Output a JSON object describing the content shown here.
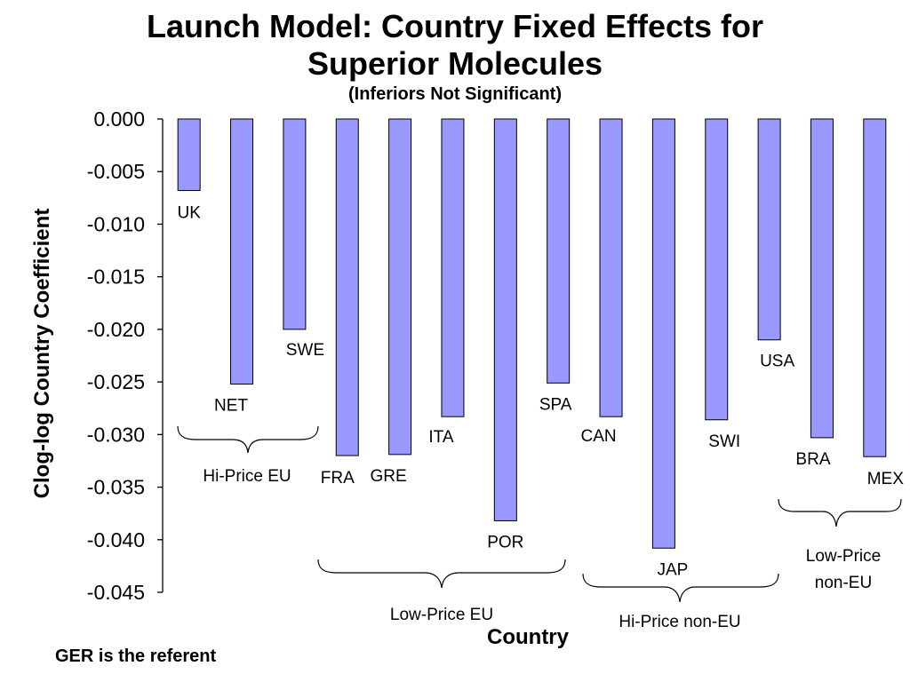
{
  "chart_data": {
    "type": "bar",
    "title": "Launch Model: Country Fixed Effects for",
    "title_line2": "Superior Molecules",
    "subtitle": "(Inferiors Not Significant)",
    "xlabel": "Country",
    "ylabel": "Clog-log Country Coefficient",
    "ylim": [
      -0.045,
      0.0
    ],
    "yticks": [
      "0.000",
      "-0.005",
      "-0.010",
      "-0.015",
      "-0.020",
      "-0.025",
      "-0.030",
      "-0.035",
      "-0.040",
      "-0.045"
    ],
    "ytick_values": [
      0.0,
      -0.005,
      -0.01,
      -0.015,
      -0.02,
      -0.025,
      -0.03,
      -0.035,
      -0.04,
      -0.045
    ],
    "categories": [
      "UK",
      "NET",
      "SWE",
      "FRA",
      "GRE",
      "ITA",
      "POR",
      "SPA",
      "CAN",
      "JAP",
      "SWI",
      "USA",
      "BRA",
      "MEX"
    ],
    "values": [
      -0.0068,
      -0.0252,
      -0.02,
      -0.032,
      -0.0319,
      -0.0283,
      -0.0382,
      -0.0251,
      -0.0283,
      -0.0408,
      -0.0286,
      -0.021,
      -0.0303,
      -0.0321
    ],
    "groups": [
      {
        "label": "Hi-Price EU",
        "members": [
          "UK",
          "NET",
          "SWE"
        ]
      },
      {
        "label": "Low-Price EU",
        "members": [
          "FRA",
          "GRE",
          "ITA",
          "POR",
          "SPA"
        ]
      },
      {
        "label": "Hi-Price non-EU",
        "members": [
          "CAN",
          "JAP",
          "SWI",
          "USA"
        ]
      },
      {
        "label_line1": "Low-Price",
        "label_line2": "non-EU",
        "members": [
          "BRA",
          "MEX"
        ]
      }
    ],
    "bar_color": "#9999FF",
    "grid": false,
    "legend": "none"
  },
  "footnote": "GER is the referent"
}
